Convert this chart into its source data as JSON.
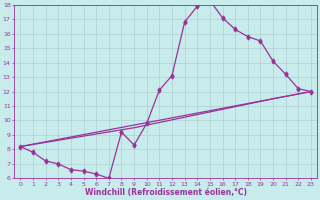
{
  "xlabel": "Windchill (Refroidissement éolien,°C)",
  "bg_color": "#c8ecec",
  "line_color": "#993399",
  "grid_color": "#b0d0d0",
  "xlim": [
    -0.5,
    23.5
  ],
  "ylim": [
    6,
    18
  ],
  "xticks": [
    0,
    1,
    2,
    3,
    4,
    5,
    6,
    7,
    8,
    9,
    10,
    11,
    12,
    13,
    14,
    15,
    16,
    17,
    18,
    19,
    20,
    21,
    22,
    23
  ],
  "yticks": [
    6,
    7,
    8,
    9,
    10,
    11,
    12,
    13,
    14,
    15,
    16,
    17,
    18
  ],
  "curve1_x": [
    0,
    1,
    2,
    3,
    4,
    5,
    6,
    7,
    8,
    9,
    10,
    11,
    12,
    13,
    14,
    15,
    16,
    17,
    18,
    19,
    20,
    21,
    22,
    23
  ],
  "curve1_y": [
    8.2,
    7.8,
    7.2,
    7.0,
    6.6,
    6.5,
    6.3,
    6.0,
    9.2,
    8.3,
    9.8,
    12.1,
    13.1,
    16.8,
    17.9,
    18.3,
    17.1,
    16.3,
    15.8,
    15.5,
    14.1,
    13.2,
    12.2,
    12.0
  ],
  "line2_x": [
    0,
    23
  ],
  "line2_y": [
    8.2,
    12.0
  ],
  "line3_x": [
    0,
    9,
    20,
    23
  ],
  "line3_y": [
    8.2,
    9.5,
    11.5,
    12.0
  ],
  "marker": "d",
  "markersize": 2.5,
  "linewidth": 0.9,
  "tick_fontsize": 4.5,
  "xlabel_fontsize": 5.5
}
